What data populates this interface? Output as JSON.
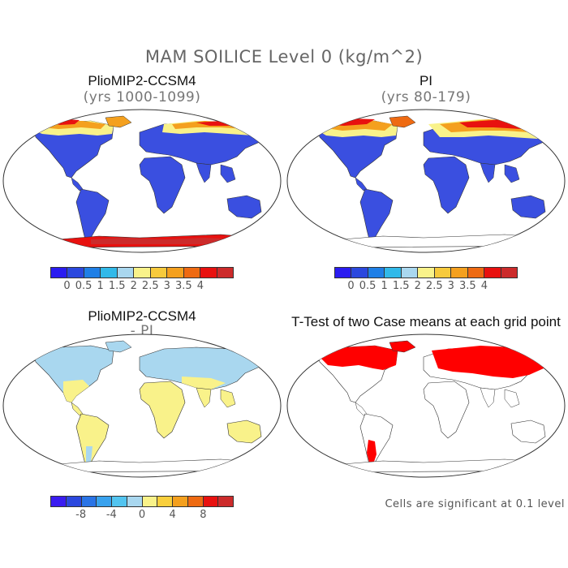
{
  "page": {
    "main_title": "MAM SOILICE Level 0 (kg/m^2)",
    "footnote": "Cells are significant at 0.1 level"
  },
  "panels": [
    {
      "title": "PlioMIP2-CCSM4",
      "subtitle": "(yrs 1000-1099)"
    },
    {
      "title": "PI",
      "subtitle": "(yrs 80-179)"
    },
    {
      "title": "PlioMIP2-CCSM4",
      "subtitle": "- PI"
    },
    {
      "title": "T-Test of two Case means at each grid point",
      "subtitle": ""
    }
  ],
  "colorbars": {
    "abs": {
      "colors": [
        "#2a1cf0",
        "#2b48de",
        "#1f7fe6",
        "#31b9e9",
        "#a9d7ef",
        "#f9f28a",
        "#f7ca3c",
        "#f4a01e",
        "#ee6a12",
        "#e8110f",
        "#cc2b2b"
      ],
      "labels": [
        "0",
        "0.5",
        "1",
        "1.5",
        "2",
        "2.5",
        "3",
        "3.5",
        "4"
      ]
    },
    "diff": {
      "colors": [
        "#3a1cf0",
        "#2b48de",
        "#2a74e6",
        "#39a2ee",
        "#52c4f0",
        "#a9d7ef",
        "#f9f28a",
        "#f9cf3c",
        "#f4a01e",
        "#ee6a12",
        "#e8110f",
        "#cc2b2b"
      ],
      "labels": [
        "-8",
        "-4",
        "0",
        "4",
        "8"
      ]
    }
  },
  "map_colors": {
    "land_low": "#3a4fe0",
    "ocean": "#ffffff",
    "coast": "#333333",
    "ice_yellow": "#f9f28a",
    "ice_orange": "#f4a01e",
    "ice_red": "#e8110f",
    "diff_blue": "#a9d7ef",
    "diff_yellow": "#f9f28a",
    "sig_red": "#ff0000"
  }
}
